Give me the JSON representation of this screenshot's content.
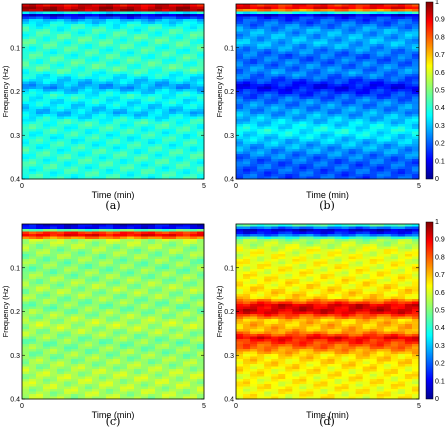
{
  "chart_data": [
    {
      "type": "heatmap",
      "caption": "(a)",
      "xlabel": "Time (min)",
      "ylabel": "Frequency (Hz)",
      "xlim": [
        0,
        5
      ],
      "ylim": [
        0,
        0.4
      ],
      "xticks": [
        "0",
        "5"
      ],
      "yticks": [
        "0.1",
        "0.2",
        "0.3",
        "0.4"
      ],
      "colorbar": false,
      "colormap": "jet",
      "band_profile": [
        {
          "f": 0.0,
          "v": 0.86
        },
        {
          "f": 0.008,
          "v": 0.95
        },
        {
          "f": 0.016,
          "v": 0.95
        },
        {
          "f": 0.022,
          "v": 0.08
        },
        {
          "f": 0.028,
          "v": 0.1
        },
        {
          "f": 0.036,
          "v": 0.3
        },
        {
          "f": 0.05,
          "v": 0.4
        },
        {
          "f": 0.08,
          "v": 0.44
        },
        {
          "f": 0.11,
          "v": 0.42
        },
        {
          "f": 0.15,
          "v": 0.44
        },
        {
          "f": 0.19,
          "v": 0.28
        },
        {
          "f": 0.21,
          "v": 0.4
        },
        {
          "f": 0.25,
          "v": 0.32
        },
        {
          "f": 0.27,
          "v": 0.42
        },
        {
          "f": 0.31,
          "v": 0.4
        },
        {
          "f": 0.35,
          "v": 0.42
        },
        {
          "f": 0.4,
          "v": 0.41
        }
      ]
    },
    {
      "type": "heatmap",
      "caption": "(b)",
      "xlabel": "Time (min)",
      "ylabel": "Frequency (Hz)",
      "xlim": [
        0,
        5
      ],
      "ylim": [
        0,
        0.4
      ],
      "xticks": [
        "0",
        "5"
      ],
      "yticks": [
        "0.1",
        "0.2",
        "0.3",
        "0.4"
      ],
      "colorbar": true,
      "colorbar_ticks": [
        "0",
        "0.1",
        "0.2",
        "0.3",
        "0.4",
        "0.5",
        "0.6",
        "0.7",
        "0.8",
        "0.9",
        "1"
      ],
      "colormap": "jet",
      "band_profile": [
        {
          "f": 0.0,
          "v": 0.82
        },
        {
          "f": 0.008,
          "v": 0.9
        },
        {
          "f": 0.016,
          "v": 0.7
        },
        {
          "f": 0.024,
          "v": 0.08
        },
        {
          "f": 0.032,
          "v": 0.18
        },
        {
          "f": 0.06,
          "v": 0.28
        },
        {
          "f": 0.09,
          "v": 0.3
        },
        {
          "f": 0.12,
          "v": 0.22
        },
        {
          "f": 0.16,
          "v": 0.26
        },
        {
          "f": 0.19,
          "v": 0.12
        },
        {
          "f": 0.22,
          "v": 0.24
        },
        {
          "f": 0.25,
          "v": 0.28
        },
        {
          "f": 0.29,
          "v": 0.38
        },
        {
          "f": 0.32,
          "v": 0.3
        },
        {
          "f": 0.36,
          "v": 0.22
        },
        {
          "f": 0.4,
          "v": 0.2
        }
      ]
    },
    {
      "type": "heatmap",
      "caption": "(c)",
      "xlabel": "Time (min)",
      "ylabel": "Frequency (Hz)",
      "xlim": [
        0,
        5
      ],
      "ylim": [
        0,
        0.4
      ],
      "xticks": [
        "0",
        "5"
      ],
      "yticks": [
        "0.1",
        "0.2",
        "0.3",
        "0.4"
      ],
      "colorbar": false,
      "colormap": "jet",
      "band_profile": [
        {
          "f": 0.0,
          "v": 0.1
        },
        {
          "f": 0.01,
          "v": 0.12
        },
        {
          "f": 0.016,
          "v": 0.6
        },
        {
          "f": 0.022,
          "v": 0.95
        },
        {
          "f": 0.03,
          "v": 0.8
        },
        {
          "f": 0.036,
          "v": 0.55
        },
        {
          "f": 0.06,
          "v": 0.52
        },
        {
          "f": 0.1,
          "v": 0.5
        },
        {
          "f": 0.15,
          "v": 0.53
        },
        {
          "f": 0.19,
          "v": 0.5
        },
        {
          "f": 0.23,
          "v": 0.55
        },
        {
          "f": 0.27,
          "v": 0.5
        },
        {
          "f": 0.31,
          "v": 0.52
        },
        {
          "f": 0.35,
          "v": 0.55
        },
        {
          "f": 0.4,
          "v": 0.54
        }
      ]
    },
    {
      "type": "heatmap",
      "caption": "(d)",
      "xlabel": "Time (min)",
      "ylabel": "Frequency (Hz)",
      "xlim": [
        0,
        5
      ],
      "ylim": [
        0,
        0.4
      ],
      "xticks": [
        "0",
        "5"
      ],
      "yticks": [
        "0.1",
        "0.2",
        "0.3",
        "0.4"
      ],
      "colorbar": true,
      "colorbar_ticks": [
        "0",
        "0.1",
        "0.2",
        "0.3",
        "0.4",
        "0.5",
        "0.6",
        "0.7",
        "0.8",
        "0.9",
        "1"
      ],
      "colormap": "jet",
      "band_profile": [
        {
          "f": 0.0,
          "v": 0.55
        },
        {
          "f": 0.006,
          "v": 0.3
        },
        {
          "f": 0.014,
          "v": 0.08
        },
        {
          "f": 0.024,
          "v": 0.18
        },
        {
          "f": 0.034,
          "v": 0.52
        },
        {
          "f": 0.06,
          "v": 0.6
        },
        {
          "f": 0.12,
          "v": 0.62
        },
        {
          "f": 0.17,
          "v": 0.66
        },
        {
          "f": 0.185,
          "v": 0.9
        },
        {
          "f": 0.2,
          "v": 0.92
        },
        {
          "f": 0.22,
          "v": 0.68
        },
        {
          "f": 0.245,
          "v": 0.7
        },
        {
          "f": 0.26,
          "v": 0.88
        },
        {
          "f": 0.28,
          "v": 0.78
        },
        {
          "f": 0.3,
          "v": 0.66
        },
        {
          "f": 0.34,
          "v": 0.63
        },
        {
          "f": 0.4,
          "v": 0.62
        }
      ]
    }
  ]
}
